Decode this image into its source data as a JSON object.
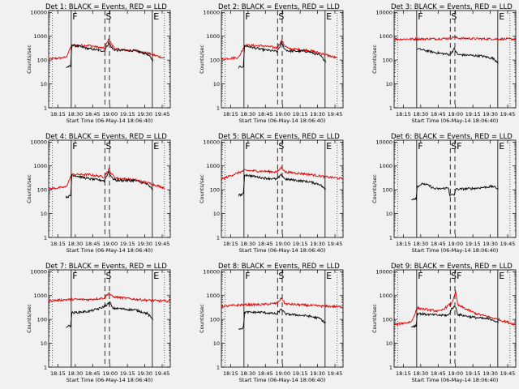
{
  "shared": {
    "x_ticks": [
      "18:15",
      "18:30",
      "18:45",
      "19:00",
      "19:15",
      "19:30",
      "19:45"
    ],
    "y_ticks": [
      "1",
      "10",
      "100",
      "1000",
      "10000"
    ],
    "ylabel": "Counts/sec",
    "xlabel": "Start Time (06-May-14 18:06:40)",
    "markers": {
      "F": "F",
      "S": "S",
      "E": "E"
    },
    "colors": {
      "events": "#000000",
      "lld": "#dd0000"
    },
    "ylim": [
      1,
      12000
    ],
    "xlim_minutes": [
      0,
      105
    ]
  },
  "chart_data": [
    {
      "type": "line",
      "title": "Det 1: BLACK = Events, RED = LLD",
      "markers": [
        "F",
        "S",
        "E"
      ],
      "series": [
        {
          "name": "Events",
          "color": "#000000",
          "points": [
            [
              15,
              50
            ],
            [
              19,
              55
            ],
            [
              20,
              430
            ],
            [
              35,
              300
            ],
            [
              48,
              240
            ],
            [
              52,
              550
            ],
            [
              55,
              300
            ],
            [
              58,
              260
            ],
            [
              75,
              250
            ],
            [
              85,
              180
            ],
            [
              90,
              100
            ]
          ]
        },
        {
          "name": "LLD",
          "color": "#dd0000",
          "points": [
            [
              0,
              110
            ],
            [
              15,
              130
            ],
            [
              20,
              420
            ],
            [
              35,
              410
            ],
            [
              48,
              310
            ],
            [
              52,
              780
            ],
            [
              55,
              400
            ],
            [
              58,
              290
            ],
            [
              75,
              240
            ],
            [
              85,
              200
            ],
            [
              100,
              120
            ]
          ]
        }
      ]
    },
    {
      "type": "line",
      "title": "Det 2: BLACK = Events, RED = LLD",
      "markers": [
        "F",
        "S",
        "E"
      ],
      "series": [
        {
          "name": "Events",
          "color": "#000000",
          "points": [
            [
              15,
              50
            ],
            [
              19,
              55
            ],
            [
              20,
              400
            ],
            [
              35,
              280
            ],
            [
              48,
              230
            ],
            [
              52,
              500
            ],
            [
              55,
              280
            ],
            [
              58,
              240
            ],
            [
              75,
              230
            ],
            [
              85,
              160
            ],
            [
              90,
              90
            ]
          ]
        },
        {
          "name": "LLD",
          "color": "#dd0000",
          "points": [
            [
              0,
              110
            ],
            [
              15,
              130
            ],
            [
              20,
              420
            ],
            [
              35,
              400
            ],
            [
              48,
              330
            ],
            [
              52,
              650
            ],
            [
              55,
              400
            ],
            [
              58,
              300
            ],
            [
              75,
              260
            ],
            [
              85,
              200
            ],
            [
              100,
              120
            ]
          ]
        }
      ]
    },
    {
      "type": "line",
      "title": "Det 3: BLACK = Events, RED = LLD",
      "markers": [
        "F",
        "S",
        "E"
      ],
      "series": [
        {
          "name": "Events",
          "color": "#000000",
          "points": [
            [
              20,
              300
            ],
            [
              35,
              210
            ],
            [
              48,
              170
            ],
            [
              52,
              300
            ],
            [
              55,
              170
            ],
            [
              75,
              150
            ],
            [
              85,
              120
            ],
            [
              90,
              80
            ]
          ]
        },
        {
          "name": "LLD",
          "color": "#dd0000",
          "points": [
            [
              0,
              750
            ],
            [
              35,
              780
            ],
            [
              48,
              820
            ],
            [
              52,
              960
            ],
            [
              55,
              830
            ],
            [
              75,
              780
            ],
            [
              105,
              760
            ]
          ]
        }
      ]
    },
    {
      "type": "line",
      "title": "Det 4: BLACK = Events, RED = LLD",
      "markers": [
        "F",
        "S",
        "E"
      ],
      "series": [
        {
          "name": "Events",
          "color": "#000000",
          "points": [
            [
              15,
              50
            ],
            [
              19,
              55
            ],
            [
              20,
              420
            ],
            [
              35,
              290
            ],
            [
              48,
              240
            ],
            [
              52,
              580
            ],
            [
              55,
              300
            ],
            [
              58,
              250
            ],
            [
              75,
              240
            ],
            [
              85,
              170
            ],
            [
              90,
              100
            ]
          ]
        },
        {
          "name": "LLD",
          "color": "#dd0000",
          "points": [
            [
              0,
              110
            ],
            [
              15,
              130
            ],
            [
              20,
              440
            ],
            [
              35,
              430
            ],
            [
              48,
              350
            ],
            [
              52,
              720
            ],
            [
              55,
              420
            ],
            [
              58,
              310
            ],
            [
              75,
              260
            ],
            [
              85,
              200
            ],
            [
              100,
              120
            ]
          ]
        }
      ]
    },
    {
      "type": "line",
      "title": "Det 5: BLACK = Events, RED = LLD",
      "markers": [
        "F",
        "S",
        "E"
      ],
      "series": [
        {
          "name": "Events",
          "color": "#000000",
          "points": [
            [
              15,
              60
            ],
            [
              19,
              65
            ],
            [
              20,
              430
            ],
            [
              35,
              320
            ],
            [
              48,
              280
            ],
            [
              52,
              430
            ],
            [
              55,
              280
            ],
            [
              75,
              220
            ],
            [
              85,
              170
            ],
            [
              90,
              100
            ]
          ]
        },
        {
          "name": "LLD",
          "color": "#dd0000",
          "points": [
            [
              0,
              280
            ],
            [
              20,
              650
            ],
            [
              35,
              600
            ],
            [
              48,
              560
            ],
            [
              52,
              880
            ],
            [
              55,
              560
            ],
            [
              75,
              450
            ],
            [
              90,
              350
            ],
            [
              105,
              290
            ]
          ]
        }
      ]
    },
    {
      "type": "line",
      "title": "Det 6: BLACK = Events, RED = LLD",
      "markers": [
        "F",
        "S",
        "F",
        "E"
      ],
      "series": [
        {
          "name": "Events",
          "color": "#000000",
          "points": [
            [
              15,
              40
            ],
            [
              19,
              45
            ],
            [
              20,
              140
            ],
            [
              25,
              180
            ],
            [
              30,
              150
            ],
            [
              35,
              110
            ],
            [
              40,
              110
            ],
            [
              47,
              120
            ],
            [
              48,
              60
            ],
            [
              52,
              60
            ],
            [
              53,
              105
            ],
            [
              70,
              115
            ],
            [
              85,
              140
            ],
            [
              90,
              110
            ]
          ]
        }
      ]
    },
    {
      "type": "line",
      "title": "Det 7: BLACK = Events, RED = LLD",
      "markers": [
        "F",
        "S",
        "E"
      ],
      "series": [
        {
          "name": "Events",
          "color": "#000000",
          "points": [
            [
              15,
              50
            ],
            [
              19,
              55
            ],
            [
              20,
              190
            ],
            [
              35,
              220
            ],
            [
              45,
              300
            ],
            [
              50,
              400
            ],
            [
              53,
              520
            ],
            [
              55,
              300
            ],
            [
              75,
              250
            ],
            [
              85,
              180
            ],
            [
              90,
              100
            ]
          ]
        },
        {
          "name": "LLD",
          "color": "#dd0000",
          "points": [
            [
              0,
              600
            ],
            [
              20,
              700
            ],
            [
              35,
              680
            ],
            [
              48,
              800
            ],
            [
              52,
              1300
            ],
            [
              55,
              900
            ],
            [
              75,
              700
            ],
            [
              90,
              620
            ],
            [
              105,
              580
            ]
          ]
        }
      ]
    },
    {
      "type": "line",
      "title": "Det 8: BLACK = Events, RED = LLD",
      "markers": [
        "F",
        "S",
        "E"
      ],
      "series": [
        {
          "name": "Events",
          "color": "#000000",
          "points": [
            [
              15,
              40
            ],
            [
              19,
              45
            ],
            [
              20,
              200
            ],
            [
              35,
              200
            ],
            [
              48,
              170
            ],
            [
              52,
              280
            ],
            [
              55,
              170
            ],
            [
              75,
              140
            ],
            [
              85,
              110
            ],
            [
              90,
              70
            ]
          ]
        },
        {
          "name": "LLD",
          "color": "#dd0000",
          "points": [
            [
              0,
              350
            ],
            [
              20,
              420
            ],
            [
              35,
              420
            ],
            [
              48,
              480
            ],
            [
              52,
              800
            ],
            [
              55,
              450
            ],
            [
              75,
              390
            ],
            [
              90,
              360
            ],
            [
              105,
              340
            ]
          ]
        }
      ]
    },
    {
      "type": "line",
      "title": "Det 9: BLACK = Events, RED = LLD",
      "markers": [
        "F",
        "S",
        "F",
        "E"
      ],
      "series": [
        {
          "name": "Events",
          "color": "#000000",
          "points": [
            [
              15,
              50
            ],
            [
              19,
              55
            ],
            [
              20,
              180
            ],
            [
              30,
              160
            ],
            [
              40,
              150
            ],
            [
              47,
              150
            ],
            [
              50,
              300
            ],
            [
              53,
              350
            ],
            [
              55,
              160
            ],
            [
              70,
              120
            ],
            [
              85,
              100
            ],
            [
              90,
              70
            ]
          ]
        },
        {
          "name": "LLD",
          "color": "#dd0000",
          "points": [
            [
              0,
              60
            ],
            [
              15,
              80
            ],
            [
              20,
              300
            ],
            [
              30,
              250
            ],
            [
              40,
              220
            ],
            [
              50,
              500
            ],
            [
              53,
              1500
            ],
            [
              55,
              400
            ],
            [
              70,
              180
            ],
            [
              90,
              100
            ],
            [
              105,
              60
            ]
          ]
        }
      ]
    }
  ]
}
